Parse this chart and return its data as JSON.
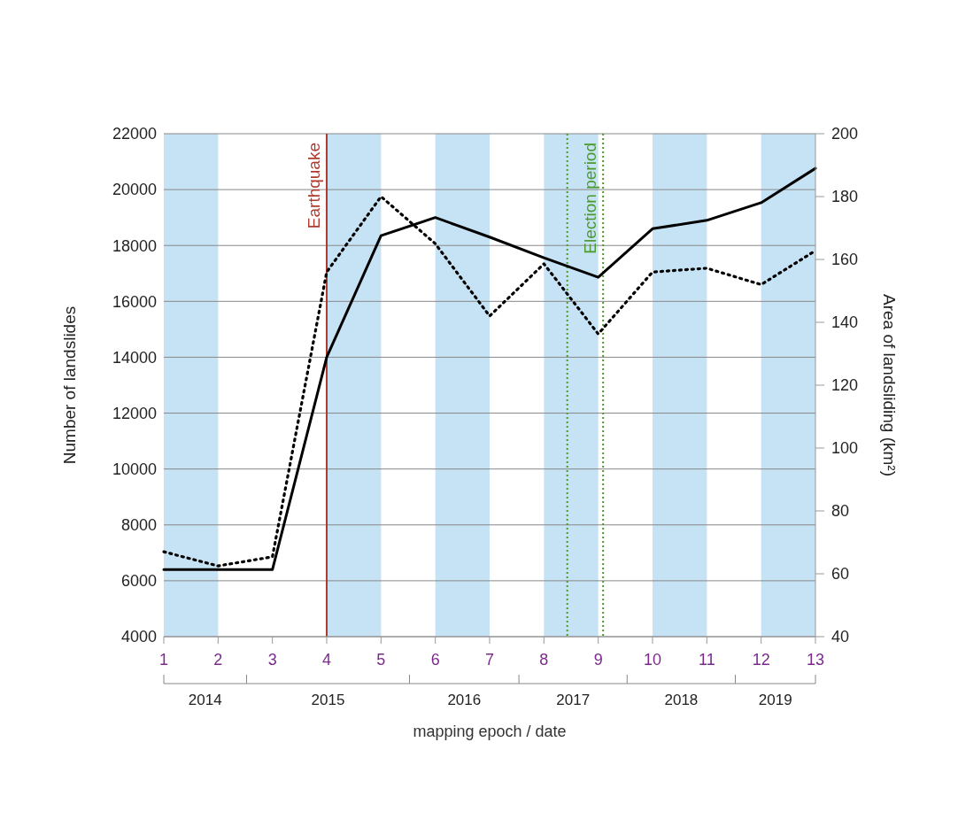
{
  "chart_data": {
    "type": "line",
    "ylabel": "Number of landslides",
    "y2label": "Area of landsliding (km²)",
    "xlabel": "mapping epoch / date",
    "x": [
      1,
      2,
      3,
      4,
      5,
      6,
      7,
      8,
      9,
      10,
      11,
      12,
      13
    ],
    "series": [
      {
        "color": "#000000",
        "line_style": "solid",
        "values": [
          6400,
          6400,
          6400,
          14000,
          18350,
          19000,
          18300,
          17560,
          16860,
          18600,
          18900,
          19530,
          20760
        ]
      },
      {
        "color": "#000000",
        "line_style": "dotted",
        "axis": "y2",
        "values": [
          67,
          62.5,
          65.4,
          156,
          180,
          165,
          142,
          158.6,
          136.3,
          156,
          157.2,
          152,
          162.8
        ]
      }
    ],
    "xlim": [
      1,
      13
    ],
    "xticks": [
      1,
      2,
      3,
      4,
      5,
      6,
      7,
      8,
      9,
      10,
      11,
      12,
      13
    ],
    "ylim": [
      4000,
      22000
    ],
    "yticks": [
      4000,
      6000,
      8000,
      10000,
      12000,
      14000,
      16000,
      18000,
      20000,
      22000
    ],
    "y2lim": [
      40,
      200
    ],
    "y2ticks": [
      40,
      60,
      80,
      100,
      120,
      140,
      160,
      180,
      200
    ],
    "grid": "y",
    "legend": false,
    "marker": "none",
    "bands": [
      {
        "axis": "x",
        "from": 1,
        "to": 2,
        "color": "#c6e2f5"
      },
      {
        "axis": "x",
        "from": 4,
        "to": 5,
        "color": "#c6e2f5"
      },
      {
        "axis": "x",
        "from": 6,
        "to": 7,
        "color": "#c6e2f5"
      },
      {
        "axis": "x",
        "from": 8,
        "to": 9,
        "color": "#c6e2f5"
      },
      {
        "axis": "x",
        "from": 10,
        "to": 11,
        "color": "#c6e2f5"
      },
      {
        "axis": "x",
        "from": 12,
        "to": 13,
        "color": "#c6e2f5"
      }
    ],
    "annotations": [
      "2014",
      "2015",
      "2016",
      "2017",
      "2018",
      "2019"
    ],
    "ref_lines": [
      {
        "axis": "x",
        "value": 4,
        "label": "Earthquake",
        "color": "#b03a2e",
        "line_style": "solid"
      },
      {
        "axis": "x",
        "value": 8.43,
        "color": "#4c9a2a",
        "line_style": "dotted"
      },
      {
        "axis": "x",
        "value": 9.09,
        "label": "Election period",
        "color": "#4c9a2a",
        "line_style": "dotted"
      }
    ]
  }
}
